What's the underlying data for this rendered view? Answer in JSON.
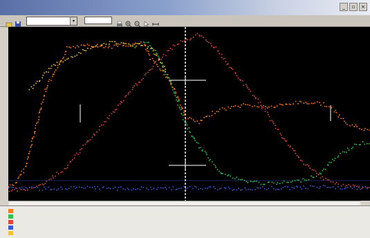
{
  "window": {
    "title": "",
    "minimize_glyph": "_",
    "restore_glyph": "▫",
    "close_glyph": "×"
  },
  "toolbar": {
    "trace_select_value": "",
    "trace_select_arrow": "▾",
    "field_value": "",
    "button_icons": [
      "open-icon",
      "save-icon",
      "print-icon",
      "zoom-in-icon",
      "zoom-out-icon",
      "cursor-icon",
      "measure-icon"
    ]
  },
  "traces": [
    {
      "name": "",
      "color": "#ff7a1a"
    },
    {
      "name": "",
      "color": "#33c24d"
    },
    {
      "name": "",
      "color": "#e0483a"
    },
    {
      "name": "",
      "color": "#3a5bd9"
    },
    {
      "name": "",
      "color": "#f2c13a"
    }
  ],
  "readouts": [
    {
      "col1": "",
      "col2": "",
      "col3": ""
    },
    {
      "col1": "",
      "col2": "",
      "col3": ""
    },
    {
      "col1": "",
      "col2": "",
      "col3": ""
    },
    {
      "col1": "",
      "col2": "",
      "col3": ""
    },
    {
      "col1": "",
      "col2": "",
      "col3": ""
    }
  ]
}
